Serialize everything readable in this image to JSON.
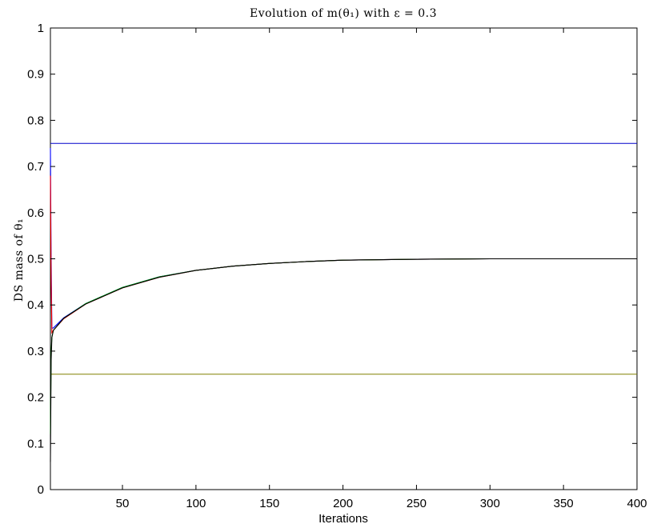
{
  "chart_data": {
    "type": "line",
    "title": "Evolution of m(θ₁) with ε = 0.3",
    "xlabel": "Iterations",
    "ylabel": "DS mass of θ₁",
    "xlim": [
      1,
      400
    ],
    "ylim": [
      0,
      1
    ],
    "x_ticks": [
      50,
      100,
      150,
      200,
      250,
      300,
      350,
      400
    ],
    "y_ticks": [
      0,
      0.1,
      0.2,
      0.3,
      0.4,
      0.5,
      0.6,
      0.7,
      0.8,
      0.9,
      1
    ],
    "grid": false,
    "series": [
      {
        "color": "#0000cc",
        "points": [
          [
            1,
            0.75
          ],
          [
            400,
            0.75
          ]
        ]
      },
      {
        "color": "#808000",
        "points": [
          [
            1,
            0.25
          ],
          [
            400,
            0.25
          ]
        ]
      },
      {
        "color": "#0000ff",
        "points": [
          [
            1,
            0.74
          ],
          [
            1.5,
            0.5
          ],
          [
            2,
            0.35
          ],
          [
            3,
            0.35
          ],
          [
            10,
            0.372
          ],
          [
            25,
            0.403
          ],
          [
            50,
            0.438
          ],
          [
            75,
            0.461
          ],
          [
            100,
            0.475
          ],
          [
            125,
            0.484
          ],
          [
            150,
            0.49
          ],
          [
            175,
            0.494
          ],
          [
            200,
            0.497
          ],
          [
            250,
            0.499
          ],
          [
            300,
            0.5
          ],
          [
            400,
            0.5
          ]
        ]
      },
      {
        "color": "#ff0000",
        "points": [
          [
            1,
            0.68
          ],
          [
            1.5,
            0.45
          ],
          [
            2,
            0.34
          ],
          [
            3,
            0.345
          ],
          [
            10,
            0.37
          ],
          [
            25,
            0.402
          ],
          [
            50,
            0.437
          ],
          [
            75,
            0.46
          ],
          [
            100,
            0.475
          ],
          [
            125,
            0.484
          ],
          [
            150,
            0.49
          ],
          [
            175,
            0.494
          ],
          [
            200,
            0.497
          ],
          [
            250,
            0.499
          ],
          [
            300,
            0.5
          ],
          [
            400,
            0.5
          ]
        ]
      },
      {
        "color": "#00aa00",
        "points": [
          [
            1,
            0.12
          ],
          [
            1.5,
            0.3
          ],
          [
            2,
            0.33
          ],
          [
            3,
            0.345
          ],
          [
            10,
            0.371
          ],
          [
            25,
            0.403
          ],
          [
            50,
            0.438
          ],
          [
            75,
            0.461
          ],
          [
            100,
            0.475
          ],
          [
            125,
            0.484
          ],
          [
            150,
            0.49
          ],
          [
            175,
            0.494
          ],
          [
            200,
            0.497
          ],
          [
            250,
            0.499
          ],
          [
            300,
            0.5
          ],
          [
            400,
            0.5
          ]
        ]
      },
      {
        "color": "#000000",
        "points": [
          [
            1,
            0.06
          ],
          [
            1.5,
            0.28
          ],
          [
            2,
            0.33
          ],
          [
            3,
            0.345
          ],
          [
            10,
            0.371
          ],
          [
            25,
            0.402
          ],
          [
            50,
            0.437
          ],
          [
            75,
            0.46
          ],
          [
            100,
            0.475
          ],
          [
            125,
            0.484
          ],
          [
            150,
            0.49
          ],
          [
            175,
            0.494
          ],
          [
            200,
            0.497
          ],
          [
            250,
            0.499
          ],
          [
            300,
            0.5
          ],
          [
            400,
            0.5
          ]
        ]
      }
    ]
  }
}
